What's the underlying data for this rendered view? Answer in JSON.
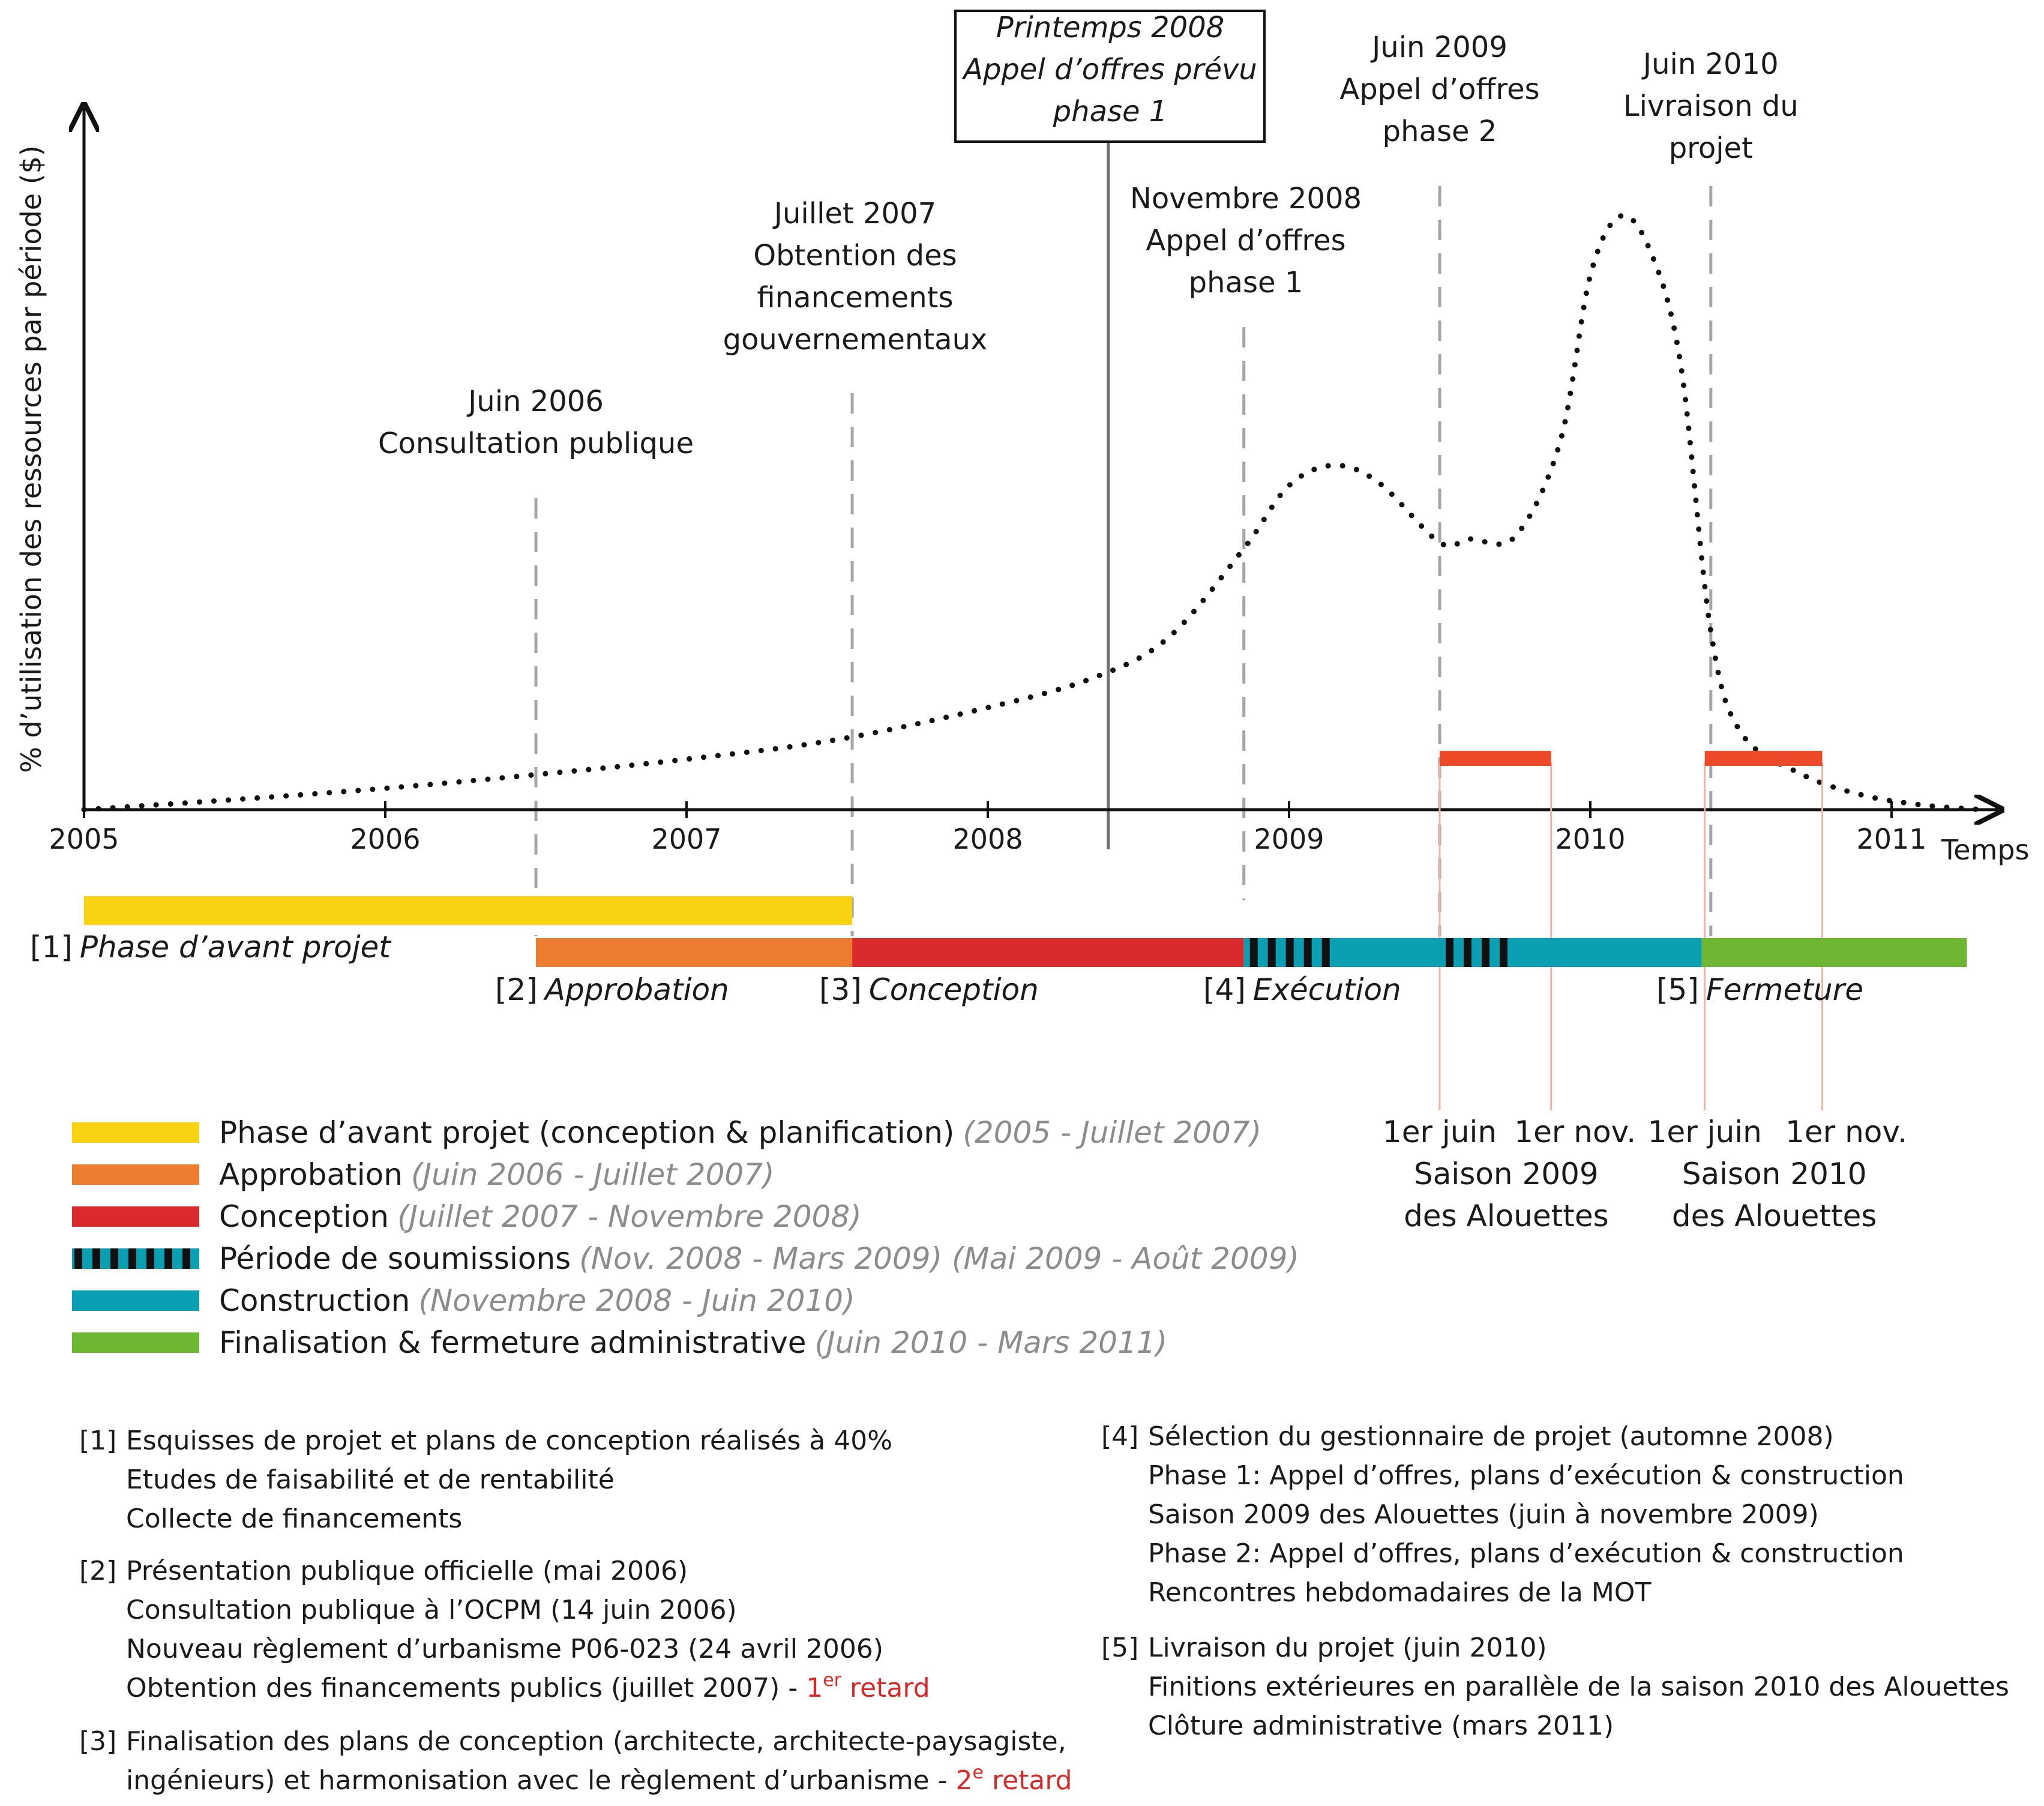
{
  "chart_data": {
    "type": "line",
    "ylabel": "% d’utilisation des ressources par période ($)",
    "xlabel": "Temps",
    "x_ticks": [
      "2005",
      "2006",
      "2007",
      "2008",
      "2009",
      "2010",
      "2011"
    ],
    "xlim": [
      2005.0,
      2011.3
    ],
    "ylim": [
      0,
      100
    ],
    "series": [
      {
        "style": "dotted",
        "points": [
          [
            2005.0,
            0
          ],
          [
            2005.5,
            1.7
          ],
          [
            2006.0,
            3.6
          ],
          [
            2006.5,
            5.9
          ],
          [
            2007.0,
            8.5
          ],
          [
            2007.5,
            11.8
          ],
          [
            2008.0,
            17.2
          ],
          [
            2008.35,
            22.2
          ],
          [
            2008.6,
            29
          ],
          [
            2008.85,
            44
          ],
          [
            2009.0,
            54.6
          ],
          [
            2009.15,
            58
          ],
          [
            2009.3,
            55
          ],
          [
            2009.5,
            45
          ],
          [
            2009.6,
            45.6
          ],
          [
            2009.75,
            46
          ],
          [
            2009.9,
            62
          ],
          [
            2010.0,
            90
          ],
          [
            2010.1,
            100
          ],
          [
            2010.2,
            94
          ],
          [
            2010.3,
            75
          ],
          [
            2010.4,
            30
          ],
          [
            2010.5,
            13
          ],
          [
            2010.7,
            6
          ],
          [
            2010.9,
            2.5
          ],
          [
            2011.1,
            0.8
          ],
          [
            2011.3,
            0
          ]
        ]
      }
    ]
  },
  "events": [
    {
      "year": 2006.5,
      "lines": [
        "Juin 2006",
        "Consultation publique"
      ],
      "style": "dashed"
    },
    {
      "year": 2007.55,
      "lines": [
        "Juillet 2007",
        "Obtention des",
        "financements",
        "gouvernementaux"
      ],
      "style": "dashed"
    },
    {
      "year": 2008.4,
      "lines": [
        "Printemps 2008",
        "Appel d’offres prévu",
        "phase 1"
      ],
      "style": "solid-boxed"
    },
    {
      "year": 2008.85,
      "lines": [
        "Novembre 2008",
        "Appel d’offres",
        "phase 1"
      ],
      "style": "dashed"
    },
    {
      "year": 2009.5,
      "lines": [
        "Juin 2009",
        "Appel d’offres",
        "phase 2"
      ],
      "style": "dashed"
    },
    {
      "year": 2010.4,
      "lines": [
        "Juin 2010",
        "Livraison du",
        "projet"
      ],
      "style": "dashed"
    }
  ],
  "colors": {
    "avant_projet": "#f9d312",
    "approbation": "#ec7c30",
    "conception": "#db2a2d",
    "soumissions_dark": "#111111",
    "construction": "#0a9fb3",
    "fermeture": "#6db733",
    "season": "#ee4a2a",
    "season_line": "#f1b2a6",
    "event_line": "#a6a6a6",
    "muted_text": "#8c8c8c",
    "red_text": "#d32a2a"
  },
  "phases": [
    {
      "key": "avant_projet",
      "num": "[1]",
      "name": "Phase d’avant projet",
      "start": 2005.0,
      "end": 2007.55,
      "row": 1
    },
    {
      "key": "approbation",
      "num": "[2]",
      "name": "Approbation",
      "start": 2006.5,
      "end": 2007.55,
      "row": 2
    },
    {
      "key": "conception",
      "num": "[3]",
      "name": "Conception",
      "start": 2007.55,
      "end": 2008.85,
      "row": 2
    },
    {
      "key": "construction",
      "num": "[4]",
      "name": "Exécution",
      "start": 2008.85,
      "end": 2010.37,
      "row": 2
    },
    {
      "key": "fermeture",
      "num": "[5]",
      "name": "Fermeture",
      "start": 2010.37,
      "end": 2011.25,
      "row": 2
    }
  ],
  "soumissions": [
    [
      2008.85,
      2009.12
    ],
    [
      2009.5,
      2009.72
    ]
  ],
  "seasons": [
    {
      "start": 2009.5,
      "end": 2009.87,
      "start_label": "1er juin",
      "end_label": "1er nov.",
      "caption": [
        "Saison 2009",
        "des Alouettes"
      ]
    },
    {
      "start": 2010.38,
      "end": 2010.77,
      "start_label": "1er juin",
      "end_label": "1er nov.",
      "caption": [
        "Saison 2010",
        "des Alouettes"
      ]
    }
  ],
  "legend": [
    {
      "swatch": "avant_projet",
      "label": "Phase d’avant projet (conception & planification)",
      "dates": "(2005 - Juillet 2007)"
    },
    {
      "swatch": "approbation",
      "label": "Approbation",
      "dates": "(Juin 2006 - Juillet 2007)"
    },
    {
      "swatch": "conception",
      "label": "Conception",
      "dates": "(Juillet 2007 -  Novembre 2008)"
    },
    {
      "swatch": "soumissions",
      "label": "Période de soumissions",
      "dates": "(Nov. 2008 - Mars 2009) (Mai 2009 - Août 2009)"
    },
    {
      "swatch": "construction",
      "label": "Construction",
      "dates": "(Novembre 2008 - Juin 2010)"
    },
    {
      "swatch": "fermeture",
      "label": "Finalisation & fermeture administrative",
      "dates": "(Juin 2010 - Mars 2011)"
    }
  ],
  "notes_left": [
    {
      "num": "[1]",
      "lines": [
        [
          {
            "t": "Esquisses de projet et plans de conception réalisés à 40%"
          }
        ],
        [
          {
            "t": "Etudes de faisabilité et de rentabilité"
          }
        ],
        [
          {
            "t": "Collecte de financements"
          }
        ]
      ]
    },
    {
      "num": "[2]",
      "lines": [
        [
          {
            "t": "Présentation publique officielle (mai 2006)"
          }
        ],
        [
          {
            "t": "Consultation publique à l’OCPM (14 juin 2006)"
          }
        ],
        [
          {
            "t": "Nouveau règlement d’urbanisme P06-023 (24 avril 2006)"
          }
        ],
        [
          {
            "t": "Obtention des financements publics (juillet 2007)  - "
          },
          {
            "t": "1",
            "c": "red"
          },
          {
            "t": "er",
            "c": "red",
            "sup": true
          },
          {
            "t": " retard",
            "c": "red"
          }
        ]
      ]
    },
    {
      "num": "[3]",
      "lines": [
        [
          {
            "t": "Finalisation des plans de conception (architecte, architecte-paysagiste,"
          }
        ],
        [
          {
            "t": "ingénieurs) et harmonisation avec le règlement d’urbanisme - "
          },
          {
            "t": "2",
            "c": "red"
          },
          {
            "t": "e",
            "c": "red",
            "sup": true
          },
          {
            "t": " retard",
            "c": "red"
          }
        ]
      ]
    }
  ],
  "notes_right": [
    {
      "num": "[4]",
      "lines": [
        [
          {
            "t": "Sélection du gestionnaire de projet (automne 2008)"
          }
        ],
        [
          {
            "t": "Phase 1: Appel d’offres, plans d’exécution & construction"
          }
        ],
        [
          {
            "t": "Saison 2009 des Alouettes (juin à novembre 2009)"
          }
        ],
        [
          {
            "t": "Phase 2: Appel d’offres, plans d’exécution & construction"
          }
        ],
        [
          {
            "t": "Rencontres hebdomadaires de la MOT"
          }
        ]
      ]
    },
    {
      "num": "[5]",
      "lines": [
        [
          {
            "t": "Livraison du projet (juin 2010)"
          }
        ],
        [
          {
            "t": "Finitions extérieures en parallèle de la saison 2010 des Alouettes"
          }
        ],
        [
          {
            "t": "Clôture administrative (mars 2011)"
          }
        ]
      ]
    }
  ]
}
